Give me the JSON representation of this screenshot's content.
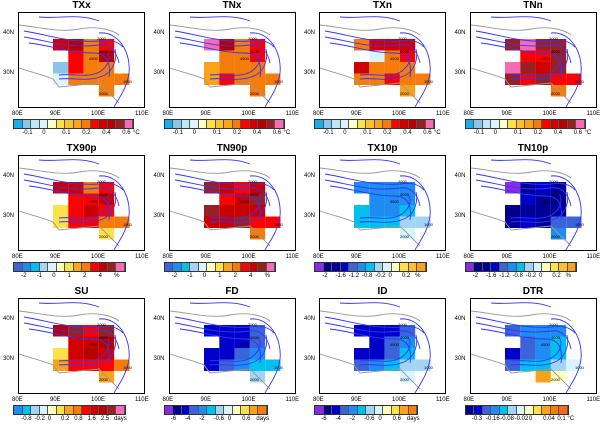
{
  "axes": {
    "lat_labels": [
      "40N",
      "30N"
    ],
    "lon_labels": [
      "80E",
      "90E",
      "100E",
      "110E"
    ],
    "contour_labels": [
      "2000",
      "4000",
      "4500",
      "2000",
      "1000"
    ]
  },
  "palettes": {
    "temp": [
      "#1aaee8",
      "#8cc4ec",
      "#bde8f5",
      "#dcf3fa",
      "#ffffc8",
      "#fde14a",
      "#fbc02d",
      "#f9a21a",
      "#f57c0a",
      "#ff0000",
      "#d10000",
      "#b80000",
      "#992020",
      "#f76bb5"
    ],
    "pct": [
      "#3a64d8",
      "#1e8cf0",
      "#00c0ee",
      "#a4d4f4",
      "#d8f4fc",
      "#ffffc0",
      "#fde14a",
      "#f9a21a",
      "#f57c0a",
      "#ff0000",
      "#c80000",
      "#992020",
      "#f76bb5"
    ],
    "cold": [
      "#8a2be2",
      "#00008b",
      "#000099",
      "#0000c8",
      "#3a64d8",
      "#1e8cf0",
      "#00c0ee",
      "#a4d4f4",
      "#d8f4fc",
      "#ffffc0",
      "#fde14a",
      "#fbc02d",
      "#f9a21a"
    ],
    "su": [
      "#1e8cf0",
      "#00c0ee",
      "#a4d4f4",
      "#d8f4fc",
      "#ffffc0",
      "#fde14a",
      "#f9a21a",
      "#f57c0a",
      "#ff0000",
      "#d10000",
      "#b80000",
      "#992020",
      "#f76bb5"
    ],
    "fd": [
      "#8a2be2",
      "#00008b",
      "#0000c8",
      "#3a64d8",
      "#1e8cf0",
      "#00c0ee",
      "#a4d4f4",
      "#d8f4fc",
      "#ffffc0",
      "#fde14a",
      "#f9a21a",
      "#f57c0a"
    ],
    "dtr": [
      "#00008b",
      "#0000c8",
      "#3a64d8",
      "#1e8cf0",
      "#00c0ee",
      "#a4d4f4",
      "#d8f4fc",
      "#ffffc0",
      "#fde14a",
      "#f9a21a",
      "#f57c0a",
      "#f76b1a"
    ]
  },
  "panels": [
    {
      "title": "TXx",
      "palette": "temp",
      "ticks": [
        "-0.1",
        "0",
        "0.1",
        "0.2",
        "0.4",
        "0.6"
      ],
      "unit": "°C",
      "cells": [
        [
          10,
          11,
          8,
          9,
          -1
        ],
        [
          -1,
          9,
          8,
          11,
          -1
        ],
        [
          1,
          9,
          8,
          8,
          -1
        ],
        [
          3,
          8,
          8,
          8,
          8
        ],
        [
          -1,
          -1,
          -1,
          8,
          -1
        ]
      ]
    },
    {
      "title": "TNx",
      "palette": "temp",
      "ticks": [
        "-0.1",
        "0",
        "0.1",
        "0.2",
        "0.4",
        "0.6"
      ],
      "unit": "°C",
      "cells": [
        [
          13,
          11,
          8,
          9,
          -1
        ],
        [
          -1,
          8,
          8,
          9,
          -1
        ],
        [
          7,
          8,
          8,
          8,
          -1
        ],
        [
          7,
          9,
          8,
          8,
          8
        ],
        [
          -1,
          -1,
          -1,
          8,
          -1
        ]
      ]
    },
    {
      "title": "TXn",
      "palette": "temp",
      "ticks": [
        "-0.1",
        "0",
        "0.1",
        "0.2",
        "0.4",
        "0.6"
      ],
      "unit": "°C",
      "cells": [
        [
          8,
          10,
          10,
          10,
          -1
        ],
        [
          -1,
          3,
          8,
          9,
          -1
        ],
        [
          10,
          8,
          8,
          8,
          -1
        ],
        [
          8,
          8,
          9,
          8,
          8
        ],
        [
          -1,
          -1,
          -1,
          7,
          -1
        ]
      ]
    },
    {
      "title": "TNn",
      "palette": "temp",
      "ticks": [
        "-0.1",
        "0",
        "0.1",
        "0.2",
        "0.4",
        "0.6"
      ],
      "unit": "°C",
      "cells": [
        [
          12,
          13,
          12,
          12,
          -1
        ],
        [
          -1,
          9,
          9,
          12,
          -1
        ],
        [
          13,
          12,
          10,
          12,
          -1
        ],
        [
          12,
          9,
          12,
          9,
          9
        ],
        [
          -1,
          -1,
          -1,
          8,
          -1
        ]
      ]
    },
    {
      "title": "TX90p",
      "palette": "pct",
      "ticks": [
        "-2",
        "-1",
        "0",
        "1",
        "2",
        "4",
        "%"
      ],
      "unit": "",
      "cells": [
        [
          10,
          10,
          8,
          9,
          -1
        ],
        [
          -1,
          9,
          9,
          10,
          -1
        ],
        [
          6,
          9,
          10,
          9,
          -1
        ],
        [
          6,
          9,
          9,
          8,
          8
        ],
        [
          -1,
          -1,
          -1,
          6,
          -1
        ]
      ]
    },
    {
      "title": "TN90p",
      "palette": "pct",
      "ticks": [
        "-2",
        "-1",
        "0",
        "1",
        "2",
        "4",
        "%"
      ],
      "unit": "",
      "cells": [
        [
          11,
          10,
          9,
          10,
          -1
        ],
        [
          -1,
          9,
          10,
          11,
          -1
        ],
        [
          11,
          10,
          10,
          10,
          -1
        ],
        [
          10,
          10,
          11,
          9,
          9
        ],
        [
          -1,
          -1,
          -1,
          8,
          -1
        ]
      ]
    },
    {
      "title": "TX10p",
      "palette": "cold",
      "ticks": [
        "-2",
        "-1.6",
        "-1.2",
        "-0.8",
        "-0.2",
        "0",
        "0.2",
        "%"
      ],
      "unit": "",
      "cells": [
        [
          5,
          5,
          5,
          5,
          -1
        ],
        [
          -1,
          5,
          5,
          5,
          -1
        ],
        [
          6,
          5,
          5,
          6,
          -1
        ],
        [
          6,
          6,
          6,
          7,
          7
        ],
        [
          -1,
          -1,
          -1,
          8,
          -1
        ]
      ]
    },
    {
      "title": "TN10p",
      "palette": "cold",
      "ticks": [
        "-2",
        "-1.6",
        "-1.2",
        "-0.8",
        "-0.2",
        "0",
        "0.2",
        "%"
      ],
      "unit": "",
      "cells": [
        [
          0,
          2,
          3,
          2,
          -1
        ],
        [
          -1,
          3,
          2,
          1,
          -1
        ],
        [
          1,
          2,
          2,
          2,
          -1
        ],
        [
          2,
          3,
          2,
          4,
          4
        ],
        [
          -1,
          -1,
          -1,
          5,
          -1
        ]
      ]
    },
    {
      "title": "SU",
      "palette": "su",
      "ticks": [
        "-0.8",
        "-0.2",
        "0",
        "0.2",
        "0.8",
        "1.6",
        "2.5",
        "days"
      ],
      "unit": "",
      "cells": [
        [
          10,
          11,
          8,
          11,
          -1
        ],
        [
          -1,
          9,
          9,
          10,
          -1
        ],
        [
          5,
          9,
          10,
          9,
          -1
        ],
        [
          6,
          8,
          8,
          8,
          7
        ],
        [
          -1,
          -1,
          -1,
          6,
          -1
        ]
      ]
    },
    {
      "title": "FD",
      "palette": "fd",
      "ticks": [
        "-6",
        "-4",
        "-2",
        "-0.6",
        "0",
        "0.6",
        "days"
      ],
      "unit": "",
      "cells": [
        [
          2,
          2,
          2,
          3,
          -1
        ],
        [
          -1,
          2,
          2,
          3,
          -1
        ],
        [
          2,
          2,
          3,
          4,
          -1
        ],
        [
          2,
          3,
          4,
          5,
          5
        ],
        [
          -1,
          -1,
          -1,
          6,
          -1
        ]
      ]
    },
    {
      "title": "ID",
      "palette": "fd",
      "ticks": [
        "-6",
        "-4",
        "-2",
        "-0.6",
        "0",
        "0.6",
        "days"
      ],
      "unit": "",
      "cells": [
        [
          2,
          2,
          2,
          3,
          -1
        ],
        [
          -1,
          2,
          3,
          4,
          -1
        ],
        [
          2,
          2,
          3,
          5,
          -1
        ],
        [
          3,
          4,
          5,
          6,
          6
        ],
        [
          -1,
          -1,
          -1,
          7,
          -1
        ]
      ]
    },
    {
      "title": "DTR",
      "palette": "dtr",
      "ticks": [
        "-0.3",
        "-0.16",
        "-0.08",
        "-0.02",
        "0",
        "0.04",
        "0.1 °C"
      ],
      "unit": "",
      "cells": [
        [
          2,
          3,
          3,
          3,
          -1
        ],
        [
          -1,
          2,
          3,
          4,
          -1
        ],
        [
          1,
          2,
          3,
          4,
          -1
        ],
        [
          2,
          4,
          4,
          5,
          6
        ],
        [
          -1,
          -1,
          9,
          7,
          -1
        ]
      ]
    }
  ]
}
